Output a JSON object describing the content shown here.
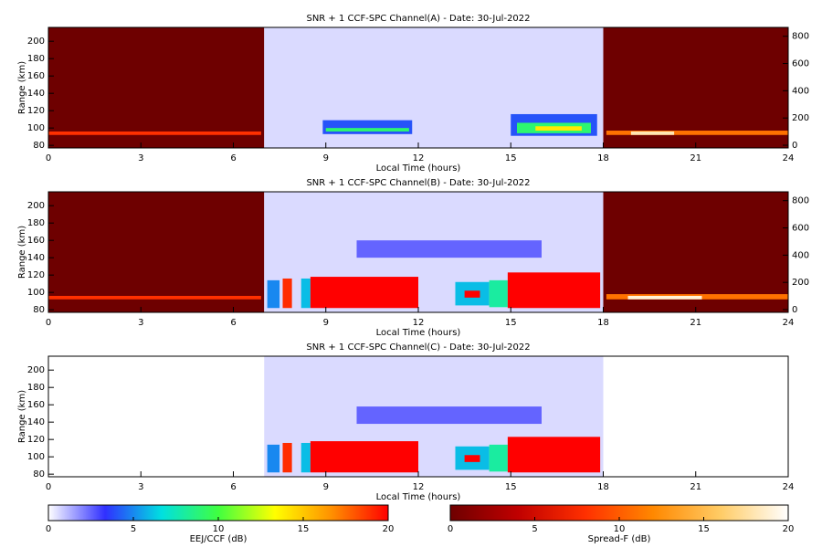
{
  "chart_data": [
    {
      "type": "heatmap",
      "title": "SNR + 1 CCF-SPC Channel(A) - Date: 30-Jul-2022",
      "xlabel": "Local Time (hours)",
      "ylabel": "Range (km)",
      "xlim": [
        0,
        24
      ],
      "xticks": [
        0,
        3,
        6,
        9,
        12,
        15,
        18,
        21,
        24
      ],
      "ylim": [
        77,
        216
      ],
      "yticks": [
        80,
        100,
        120,
        140,
        160,
        180,
        200
      ],
      "y2lim": [
        -20,
        865
      ],
      "y2ticks": [
        0,
        200,
        400,
        600,
        800
      ],
      "series": [
        {
          "colormap": 1,
          "cells": [
            {
              "x": [
                0,
                7
              ],
              "y": [
                77,
                216
              ],
              "value": 0
            },
            {
              "x": [
                0,
                6.9
              ],
              "y": [
                92,
                96
              ],
              "value": 8
            },
            {
              "x": [
                18,
                24
              ],
              "y": [
                77,
                216
              ],
              "value": 0
            },
            {
              "x": [
                18.1,
                24
              ],
              "y": [
                92,
                97
              ],
              "value": 11
            },
            {
              "x": [
                18.9,
                20.3
              ],
              "y": [
                92,
                96
              ],
              "value": 18
            }
          ]
        },
        {
          "colormap": 0,
          "cells": [
            {
              "x": [
                7,
                18
              ],
              "y": [
                77,
                216
              ],
              "value": 0.6
            },
            {
              "x": [
                8.9,
                11.8
              ],
              "y": [
                93,
                109
              ],
              "value": 4
            },
            {
              "x": [
                9,
                11.7
              ],
              "y": [
                96,
                100
              ],
              "value": 9
            },
            {
              "x": [
                15,
                17.8
              ],
              "y": [
                91,
                116
              ],
              "value": 4
            },
            {
              "x": [
                15.2,
                17.6
              ],
              "y": [
                94,
                106
              ],
              "value": 9
            },
            {
              "x": [
                15.8,
                17.3
              ],
              "y": [
                97,
                102
              ],
              "value": 14
            }
          ]
        }
      ]
    },
    {
      "type": "heatmap",
      "title": "SNR + 1 CCF-SPC Channel(B) - Date: 30-Jul-2022",
      "xlabel": "Local Time (hours)",
      "ylabel": "Range (km)",
      "xlim": [
        0,
        24
      ],
      "xticks": [
        0,
        3,
        6,
        9,
        12,
        15,
        18,
        21,
        24
      ],
      "ylim": [
        77,
        216
      ],
      "yticks": [
        80,
        100,
        120,
        140,
        160,
        180,
        200
      ],
      "y2lim": [
        -20,
        865
      ],
      "y2ticks": [
        0,
        200,
        400,
        600,
        800
      ],
      "series": [
        {
          "colormap": 1,
          "cells": [
            {
              "x": [
                0,
                7
              ],
              "y": [
                77,
                216
              ],
              "value": 0
            },
            {
              "x": [
                0,
                6.9
              ],
              "y": [
                92,
                96
              ],
              "value": 8
            },
            {
              "x": [
                18,
                24
              ],
              "y": [
                77,
                216
              ],
              "value": 0
            },
            {
              "x": [
                18.1,
                24
              ],
              "y": [
                92,
                98
              ],
              "value": 11
            },
            {
              "x": [
                18.8,
                21.2
              ],
              "y": [
                92,
                96
              ],
              "value": 19
            }
          ]
        },
        {
          "colormap": 0,
          "cells": [
            {
              "x": [
                7,
                18
              ],
              "y": [
                77,
                216
              ],
              "value": 0.6
            },
            {
              "x": [
                10,
                16
              ],
              "y": [
                140,
                160
              ],
              "value": 2.5
            },
            {
              "x": [
                7.1,
                7.5
              ],
              "y": [
                82,
                114
              ],
              "value": 5
            },
            {
              "x": [
                7.6,
                7.9
              ],
              "y": [
                82,
                116
              ],
              "value": 19
            },
            {
              "x": [
                8.2,
                8.5
              ],
              "y": [
                82,
                116
              ],
              "value": 6
            },
            {
              "x": [
                8.5,
                12
              ],
              "y": [
                82,
                118
              ],
              "value": 20
            },
            {
              "x": [
                13.2,
                14.3
              ],
              "y": [
                85,
                112
              ],
              "value": 6
            },
            {
              "x": [
                13.5,
                14
              ],
              "y": [
                94,
                102
              ],
              "value": 20
            },
            {
              "x": [
                14.3,
                14.9
              ],
              "y": [
                83,
                114
              ],
              "value": 8
            },
            {
              "x": [
                14.9,
                17.9
              ],
              "y": [
                82,
                123
              ],
              "value": 20
            }
          ]
        }
      ]
    },
    {
      "type": "heatmap",
      "title": "SNR + 1 CCF-SPC Channel(C) - Date: 30-Jul-2022",
      "xlabel": "Local Time (hours)",
      "ylabel": "Range (km)",
      "xlim": [
        0,
        24
      ],
      "xticks": [
        0,
        3,
        6,
        9,
        12,
        15,
        18,
        21,
        24
      ],
      "ylim": [
        77,
        216
      ],
      "yticks": [
        80,
        100,
        120,
        140,
        160,
        180,
        200
      ],
      "series": [
        {
          "colormap": 0,
          "cells": [
            {
              "x": [
                7,
                18
              ],
              "y": [
                77,
                216
              ],
              "value": 0.6
            },
            {
              "x": [
                10,
                16
              ],
              "y": [
                138,
                158
              ],
              "value": 2.5
            },
            {
              "x": [
                7.1,
                7.5
              ],
              "y": [
                82,
                114
              ],
              "value": 5
            },
            {
              "x": [
                7.6,
                7.9
              ],
              "y": [
                82,
                116
              ],
              "value": 19
            },
            {
              "x": [
                8.2,
                8.5
              ],
              "y": [
                82,
                116
              ],
              "value": 6
            },
            {
              "x": [
                8.5,
                12
              ],
              "y": [
                82,
                118
              ],
              "value": 20
            },
            {
              "x": [
                13.2,
                14.3
              ],
              "y": [
                85,
                112
              ],
              "value": 6
            },
            {
              "x": [
                13.5,
                14
              ],
              "y": [
                94,
                102
              ],
              "value": 20
            },
            {
              "x": [
                14.3,
                14.9
              ],
              "y": [
                83,
                114
              ],
              "value": 8
            },
            {
              "x": [
                14.9,
                17.9
              ],
              "y": [
                82,
                123
              ],
              "value": 20
            }
          ]
        }
      ]
    },
    {
      "type": "colorbar",
      "label": "EEJ/CCF (dB)",
      "xlim": [
        0,
        20
      ],
      "xticks": [
        0,
        5,
        10,
        15,
        20
      ],
      "colors": [
        "#ffffff",
        "#3030ff",
        "#00e0e0",
        "#40ff40",
        "#ffff00",
        "#ff9000",
        "#ff0000"
      ]
    },
    {
      "type": "colorbar",
      "label": "Spread-F (dB)",
      "xlim": [
        0,
        20
      ],
      "xticks": [
        0,
        5,
        10,
        15,
        20
      ],
      "colors": [
        "#6e0000",
        "#c00000",
        "#ff3000",
        "#ff8800",
        "#ffcc66",
        "#ffffff"
      ]
    }
  ]
}
